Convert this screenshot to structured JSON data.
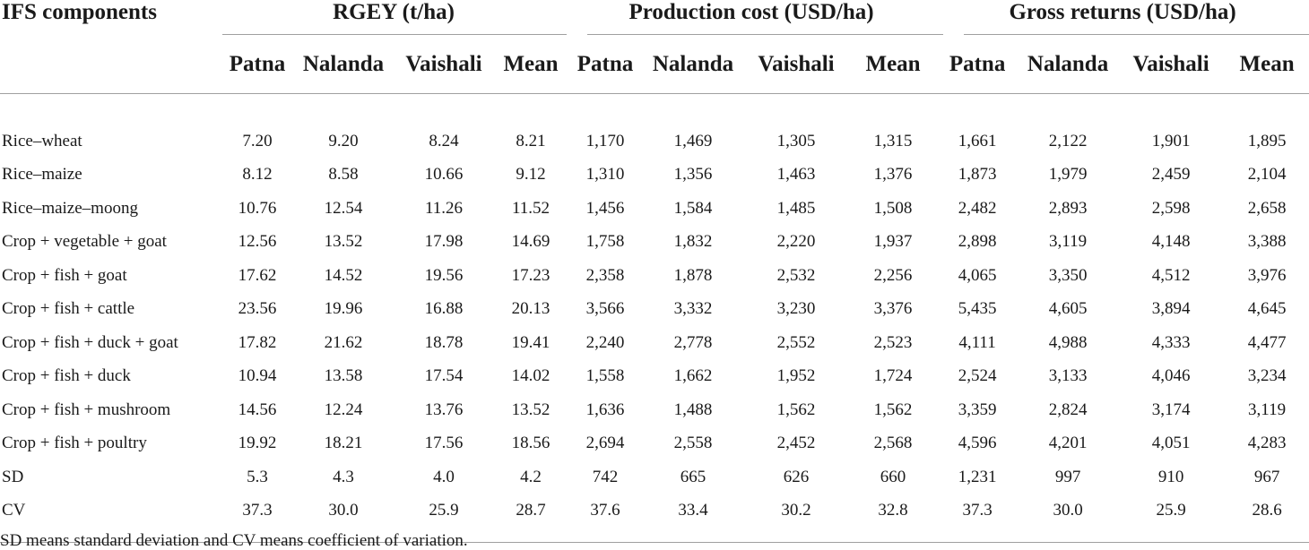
{
  "table": {
    "first_col_header": "IFS components",
    "groups": [
      {
        "label": "RGEY (t/ha)",
        "cols": [
          "Patna",
          "Nalanda",
          "Vaishali",
          "Mean"
        ]
      },
      {
        "label": "Production cost (USD/ha)",
        "cols": [
          "Patna",
          "Nalanda",
          "Vaishali",
          "Mean"
        ]
      },
      {
        "label": "Gross returns (USD/ha)",
        "cols": [
          "Patna",
          "Nalanda",
          "Vaishali",
          "Mean"
        ]
      }
    ],
    "rows": [
      {
        "name": "Rice–wheat",
        "values": [
          "7.20",
          "9.20",
          "8.24",
          "8.21",
          "1,170",
          "1,469",
          "1,305",
          "1,315",
          "1,661",
          "2,122",
          "1,901",
          "1,895"
        ]
      },
      {
        "name": "Rice–maize",
        "values": [
          "8.12",
          "8.58",
          "10.66",
          "9.12",
          "1,310",
          "1,356",
          "1,463",
          "1,376",
          "1,873",
          "1,979",
          "2,459",
          "2,104"
        ]
      },
      {
        "name": "Rice–maize–moong",
        "values": [
          "10.76",
          "12.54",
          "11.26",
          "11.52",
          "1,456",
          "1,584",
          "1,485",
          "1,508",
          "2,482",
          "2,893",
          "2,598",
          "2,658"
        ]
      },
      {
        "name": "Crop + vegetable + goat",
        "values": [
          "12.56",
          "13.52",
          "17.98",
          "14.69",
          "1,758",
          "1,832",
          "2,220",
          "1,937",
          "2,898",
          "3,119",
          "4,148",
          "3,388"
        ]
      },
      {
        "name": "Crop + fish + goat",
        "values": [
          "17.62",
          "14.52",
          "19.56",
          "17.23",
          "2,358",
          "1,878",
          "2,532",
          "2,256",
          "4,065",
          "3,350",
          "4,512",
          "3,976"
        ]
      },
      {
        "name": "Crop + fish + cattle",
        "values": [
          "23.56",
          "19.96",
          "16.88",
          "20.13",
          "3,566",
          "3,332",
          "3,230",
          "3,376",
          "5,435",
          "4,605",
          "3,894",
          "4,645"
        ]
      },
      {
        "name": "Crop + fish + duck + goat",
        "values": [
          "17.82",
          "21.62",
          "18.78",
          "19.41",
          "2,240",
          "2,778",
          "2,552",
          "2,523",
          "4,111",
          "4,988",
          "4,333",
          "4,477"
        ]
      },
      {
        "name": "Crop + fish + duck",
        "values": [
          "10.94",
          "13.58",
          "17.54",
          "14.02",
          "1,558",
          "1,662",
          "1,952",
          "1,724",
          "2,524",
          "3,133",
          "4,046",
          "3,234"
        ]
      },
      {
        "name": "Crop + fish + mushroom",
        "values": [
          "14.56",
          "12.24",
          "13.76",
          "13.52",
          "1,636",
          "1,488",
          "1,562",
          "1,562",
          "3,359",
          "2,824",
          "3,174",
          "3,119"
        ]
      },
      {
        "name": "Crop + fish + poultry",
        "values": [
          "19.92",
          "18.21",
          "17.56",
          "18.56",
          "2,694",
          "2,558",
          "2,452",
          "2,568",
          "4,596",
          "4,201",
          "4,051",
          "4,283"
        ]
      },
      {
        "name": "SD",
        "values": [
          "5.3",
          "4.3",
          "4.0",
          "4.2",
          "742",
          "665",
          "626",
          "660",
          "1,231",
          "997",
          "910",
          "967"
        ]
      },
      {
        "name": "CV",
        "values": [
          "37.3",
          "30.0",
          "25.9",
          "28.7",
          "37.6",
          "33.4",
          "30.2",
          "32.8",
          "37.3",
          "30.0",
          "25.9",
          "28.6"
        ]
      }
    ]
  },
  "footnote": "SD means standard deviation and CV means coefficient of variation."
}
